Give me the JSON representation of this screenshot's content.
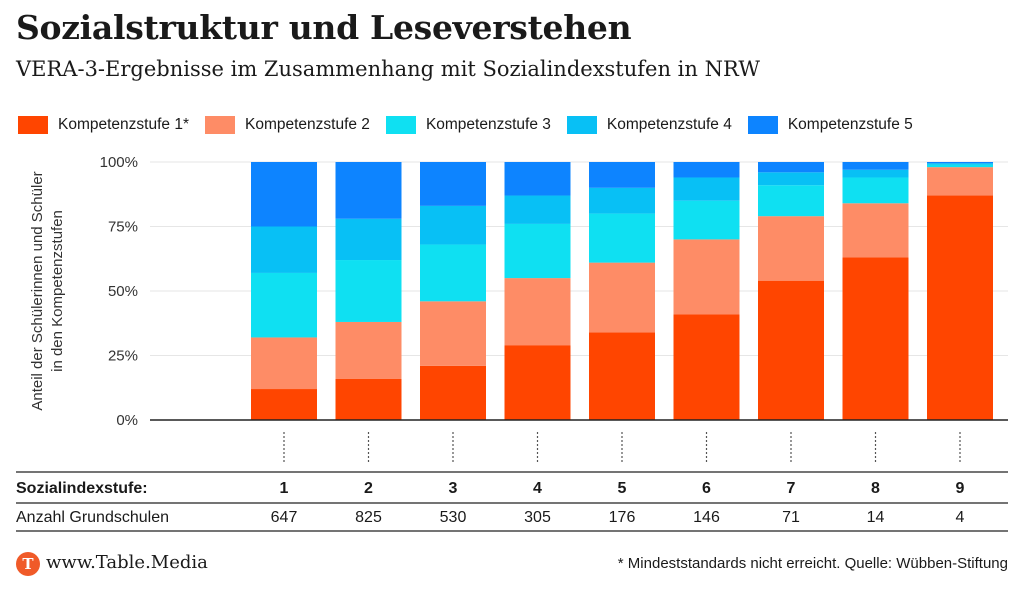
{
  "header": {
    "title": "Sozialstruktur und Leseverstehen",
    "subtitle": "VERA-3-Ergebnisse im Zusammenhang mit Sozialindexstufen in NRW"
  },
  "colors": {
    "Kompetenzstufe 1*": "#ff4500",
    "Kompetenzstufe 2": "#fe8c66",
    "Kompetenzstufe 3": "#0fe0f2",
    "Kompetenzstufe 4": "#08c0f5",
    "Kompetenzstufe 5": "#0d84ff"
  },
  "chart_data": {
    "type": "bar",
    "stacked": true,
    "title": "Sozialstruktur und Leseverstehen",
    "subtitle": "VERA-3-Ergebnisse im Zusammenhang mit Sozialindexstufen in NRW",
    "xlabel": "Sozialindexstufe:",
    "ylabel": "Anteil der Schülerinnen und Schüler in den Kompetenzstufen",
    "ylabel_lines": [
      "Anteil der Schülerinnen und Schüler",
      "in den Kompetenzstufen"
    ],
    "ylim": [
      0,
      100
    ],
    "yticks": [
      0,
      25,
      50,
      75,
      100
    ],
    "ytick_labels": [
      "0%",
      "25%",
      "50%",
      "75%",
      "100%"
    ],
    "legend_position": "top",
    "categories": [
      "1",
      "2",
      "3",
      "4",
      "5",
      "6",
      "7",
      "8",
      "9"
    ],
    "series": [
      {
        "name": "Kompetenzstufe 1*",
        "values": [
          12,
          16,
          21,
          29,
          34,
          41,
          54,
          63,
          87
        ]
      },
      {
        "name": "Kompetenzstufe 2",
        "values": [
          20,
          22,
          25,
          26,
          27,
          29,
          25,
          21,
          11
        ]
      },
      {
        "name": "Kompetenzstufe 3",
        "values": [
          25,
          24,
          22,
          21,
          19,
          15,
          12,
          10,
          1
        ]
      },
      {
        "name": "Kompetenzstufe 4",
        "values": [
          18,
          16,
          15,
          11,
          10,
          9,
          5,
          3,
          0.5
        ]
      },
      {
        "name": "Kompetenzstufe 5",
        "values": [
          25,
          22,
          17,
          13,
          10,
          6,
          4,
          3,
          0.5
        ]
      }
    ],
    "table": {
      "row_label_category": "Sozialindexstufe:",
      "row_label_count": "Anzahl Grundschulen",
      "counts": [
        "647",
        "825",
        "530",
        "305",
        "176",
        "146",
        "71",
        "14",
        "4"
      ]
    }
  },
  "footer": {
    "logo_letter": "T",
    "site": "www.Table.Media",
    "note": "* Mindeststandards nicht erreicht. Quelle: Wübben-Stiftung"
  }
}
